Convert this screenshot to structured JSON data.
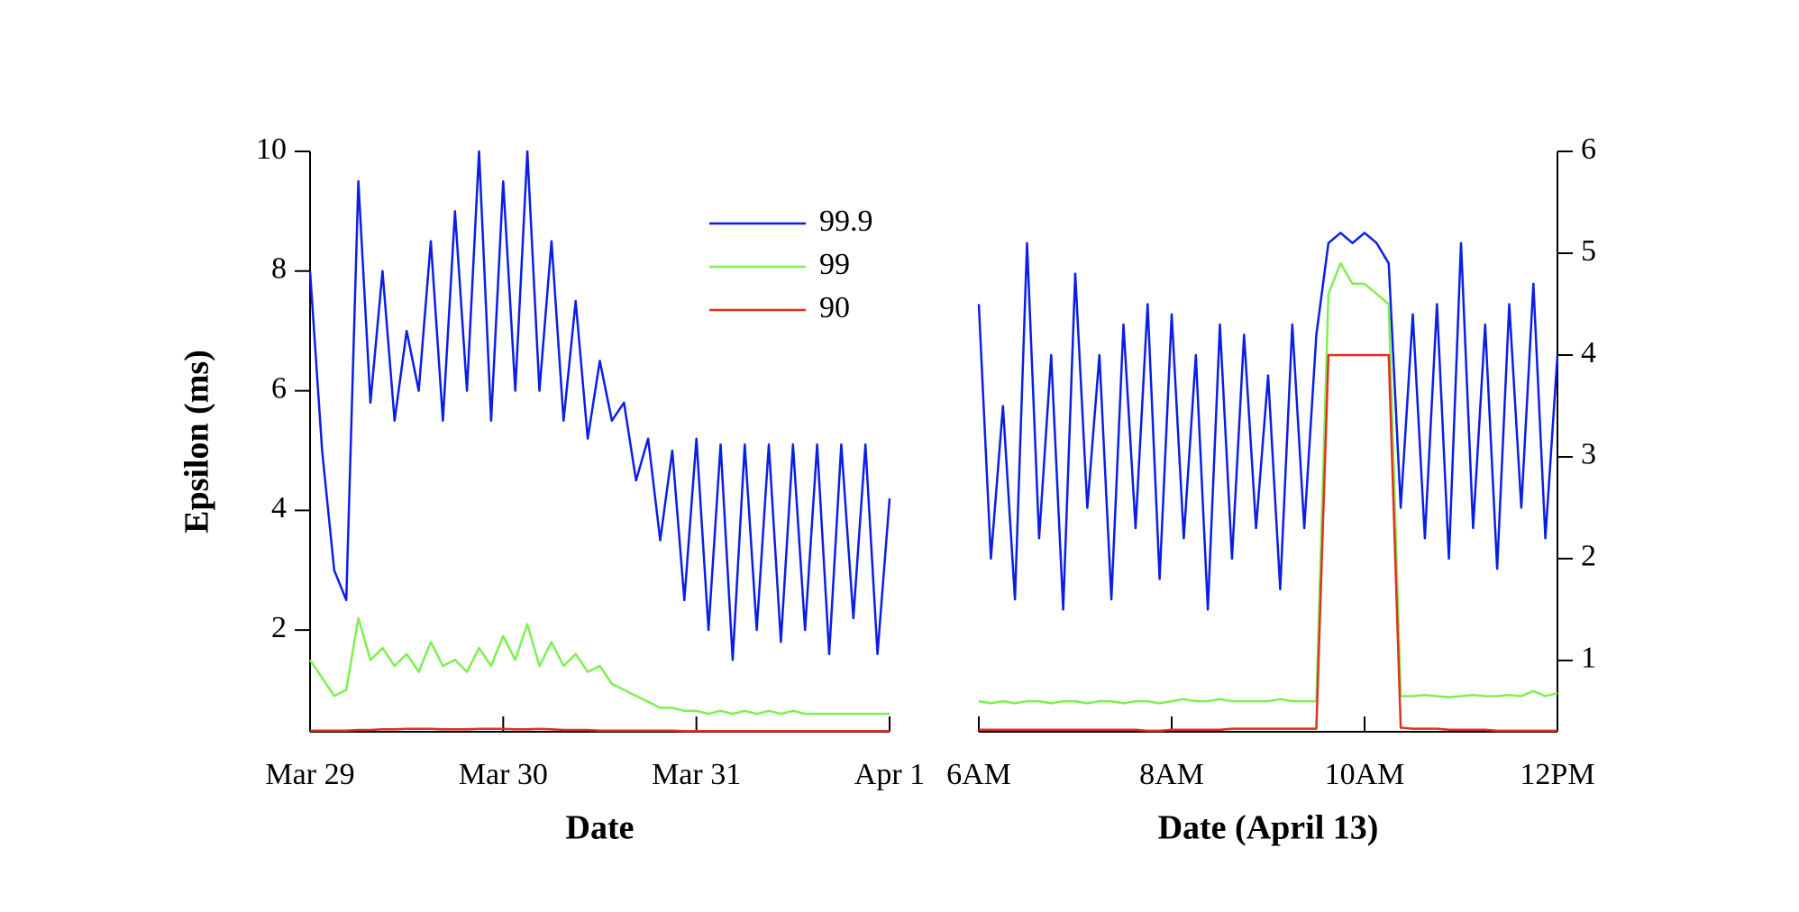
{
  "chart_data": [
    {
      "type": "line",
      "xlabel": "Date",
      "ylabel": "Epsilon (ms)",
      "y_axis_side": "left",
      "legend": "upper right",
      "x": [
        0,
        0.0625,
        0.125,
        0.1875,
        0.25,
        0.3125,
        0.375,
        0.4375,
        0.5,
        0.5625,
        0.625,
        0.6875,
        0.75,
        0.8125,
        0.875,
        0.9375,
        1,
        1.0625,
        1.125,
        1.1875,
        1.25,
        1.3125,
        1.375,
        1.4375,
        1.5,
        1.5625,
        1.625,
        1.6875,
        1.75,
        1.8125,
        1.875,
        1.9375,
        2,
        2.0625,
        2.125,
        2.1875,
        2.25,
        2.3125,
        2.375,
        2.4375,
        2.5,
        2.5625,
        2.625,
        2.6875,
        2.75,
        2.8125,
        2.875,
        2.9375,
        3
      ],
      "xlim": [
        0,
        3
      ],
      "xticks": [
        {
          "value": 0,
          "label": "Mar 29"
        },
        {
          "value": 1,
          "label": "Mar 30"
        },
        {
          "value": 2,
          "label": "Mar 31"
        },
        {
          "value": 3,
          "label": "Apr 1"
        }
      ],
      "ylim": [
        0.3,
        10
      ],
      "yticks": [
        2,
        4,
        6,
        8,
        10
      ],
      "series": [
        {
          "name": "99.9",
          "color": "#0a1ee6",
          "values": [
            8,
            5,
            3,
            2.5,
            9.5,
            5.8,
            8,
            5.5,
            7,
            6,
            8.5,
            5.5,
            9,
            6,
            10,
            5.5,
            9.5,
            6,
            10,
            6,
            8.5,
            5.5,
            7.5,
            5.2,
            6.5,
            5.5,
            5.8,
            4.5,
            5.2,
            3.5,
            5,
            2.5,
            5.2,
            2,
            5.1,
            1.5,
            5.1,
            2,
            5.1,
            1.8,
            5.1,
            2,
            5.1,
            1.6,
            5.1,
            2.2,
            5.1,
            1.6,
            4.2
          ]
        },
        {
          "name": "99",
          "color": "#7cf050",
          "values": [
            1.5,
            1.2,
            0.9,
            1,
            2.2,
            1.5,
            1.7,
            1.4,
            1.6,
            1.3,
            1.8,
            1.4,
            1.5,
            1.3,
            1.7,
            1.4,
            1.9,
            1.5,
            2.1,
            1.4,
            1.8,
            1.4,
            1.6,
            1.3,
            1.4,
            1.1,
            1,
            0.9,
            0.8,
            0.7,
            0.7,
            0.65,
            0.65,
            0.6,
            0.65,
            0.6,
            0.65,
            0.6,
            0.65,
            0.6,
            0.65,
            0.6,
            0.6,
            0.6,
            0.6,
            0.6,
            0.6,
            0.6,
            0.6
          ]
        },
        {
          "name": "90",
          "color": "#e03020",
          "values": [
            0.32,
            0.32,
            0.32,
            0.32,
            0.33,
            0.33,
            0.34,
            0.34,
            0.35,
            0.35,
            0.35,
            0.34,
            0.34,
            0.34,
            0.35,
            0.35,
            0.35,
            0.34,
            0.34,
            0.35,
            0.34,
            0.33,
            0.33,
            0.33,
            0.32,
            0.32,
            0.32,
            0.32,
            0.32,
            0.32,
            0.32,
            0.31,
            0.31,
            0.31,
            0.31,
            0.31,
            0.31,
            0.31,
            0.31,
            0.31,
            0.31,
            0.31,
            0.31,
            0.31,
            0.31,
            0.31,
            0.31,
            0.31,
            0.31
          ]
        }
      ]
    },
    {
      "type": "line",
      "xlabel": "Date (April 13)",
      "y_axis_side": "right",
      "x": [
        6,
        6.125,
        6.25,
        6.375,
        6.5,
        6.625,
        6.75,
        6.875,
        7,
        7.125,
        7.25,
        7.375,
        7.5,
        7.625,
        7.75,
        7.875,
        8,
        8.125,
        8.25,
        8.375,
        8.5,
        8.625,
        8.75,
        8.875,
        9,
        9.125,
        9.25,
        9.375,
        9.5,
        9.625,
        9.75,
        9.875,
        10,
        10.125,
        10.25,
        10.375,
        10.5,
        10.625,
        10.75,
        10.875,
        11,
        11.125,
        11.25,
        11.375,
        11.5,
        11.625,
        11.75,
        11.875,
        12
      ],
      "xlim": [
        6,
        12
      ],
      "xticks": [
        {
          "value": 6,
          "label": "6AM"
        },
        {
          "value": 8,
          "label": "8AM"
        },
        {
          "value": 10,
          "label": "10AM"
        },
        {
          "value": 12,
          "label": "12PM"
        }
      ],
      "ylim": [
        0.3,
        6
      ],
      "yticks": [
        1,
        2,
        3,
        4,
        5,
        6
      ],
      "series": [
        {
          "name": "99.9",
          "color": "#0a1ee6",
          "values": [
            4.5,
            2,
            3.5,
            1.6,
            5.1,
            2.2,
            4,
            1.5,
            4.8,
            2.5,
            4,
            1.6,
            4.3,
            2.3,
            4.5,
            1.8,
            4.4,
            2.2,
            4,
            1.5,
            4.3,
            2,
            4.2,
            2.3,
            3.8,
            1.7,
            4.3,
            2.3,
            4.2,
            5.1,
            5.2,
            5.1,
            5.2,
            5.1,
            4.9,
            2.5,
            4.4,
            2.2,
            4.5,
            2,
            5.1,
            2.3,
            4.3,
            1.9,
            4.5,
            2.5,
            4.7,
            2.2,
            4
          ]
        },
        {
          "name": "99",
          "color": "#7cf050",
          "values": [
            0.6,
            0.58,
            0.6,
            0.58,
            0.6,
            0.6,
            0.58,
            0.6,
            0.6,
            0.58,
            0.6,
            0.6,
            0.58,
            0.6,
            0.6,
            0.58,
            0.6,
            0.62,
            0.6,
            0.6,
            0.62,
            0.6,
            0.6,
            0.6,
            0.6,
            0.62,
            0.6,
            0.6,
            0.6,
            4.6,
            4.9,
            4.7,
            4.7,
            4.6,
            4.5,
            0.65,
            0.65,
            0.66,
            0.65,
            0.64,
            0.65,
            0.66,
            0.65,
            0.65,
            0.66,
            0.65,
            0.7,
            0.65,
            0.68
          ]
        },
        {
          "name": "90",
          "color": "#e03020",
          "values": [
            0.32,
            0.32,
            0.32,
            0.32,
            0.32,
            0.32,
            0.32,
            0.32,
            0.32,
            0.32,
            0.32,
            0.32,
            0.32,
            0.32,
            0.31,
            0.31,
            0.32,
            0.32,
            0.32,
            0.32,
            0.32,
            0.33,
            0.33,
            0.33,
            0.33,
            0.33,
            0.33,
            0.33,
            0.33,
            4,
            4,
            4,
            4,
            4,
            4,
            0.34,
            0.33,
            0.33,
            0.33,
            0.32,
            0.32,
            0.32,
            0.32,
            0.31,
            0.31,
            0.31,
            0.31,
            0.31,
            0.31
          ]
        }
      ]
    }
  ]
}
